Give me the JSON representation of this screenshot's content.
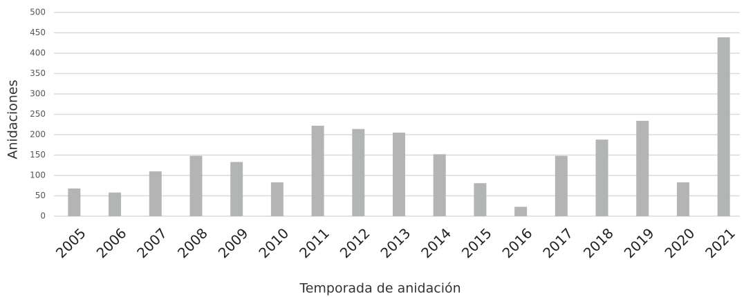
{
  "chart_data": {
    "type": "bar",
    "x_label": "Temporada de anidación",
    "y_label": "Anidaciones",
    "categories": [
      "2005",
      "2006",
      "2007",
      "2008",
      "2009",
      "2010",
      "2011",
      "2012",
      "2013",
      "2014",
      "2015",
      "2016",
      "2017",
      "2018",
      "2019",
      "2020",
      "2021"
    ],
    "values": [
      68,
      58,
      110,
      148,
      133,
      83,
      222,
      214,
      205,
      152,
      81,
      23,
      148,
      188,
      234,
      83,
      439
    ],
    "color": "#b3b5b4",
    "ylim": [
      0,
      500
    ],
    "yticks": [
      0,
      50,
      100,
      150,
      200,
      250,
      300,
      350,
      400,
      450,
      500
    ],
    "grid": true
  }
}
